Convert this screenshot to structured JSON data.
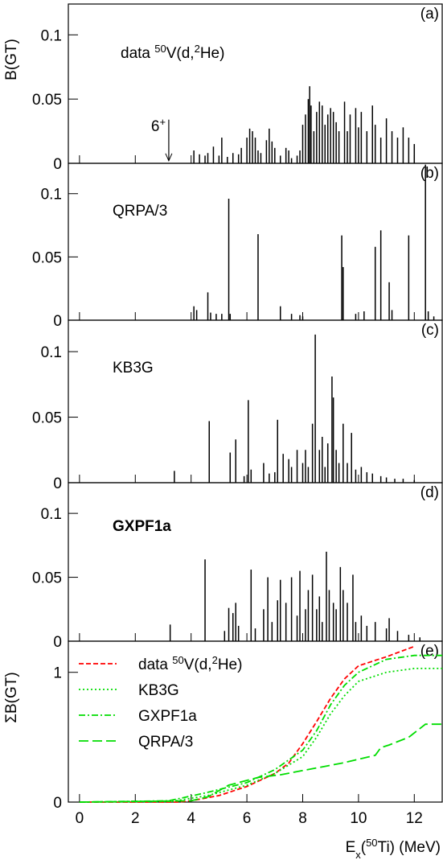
{
  "chart_data": [
    {
      "type": "bar",
      "panel": "(a)",
      "ylabel": "B(GT)",
      "label": [
        {
          "text": "data "
        },
        {
          "text": "50",
          "shift": "sup"
        },
        {
          "text": "V(d,"
        },
        {
          "text": "2",
          "shift": "sup"
        },
        {
          "text": "He)"
        }
      ],
      "annotation": {
        "parts": [
          {
            "text": "6"
          },
          {
            "text": "+",
            "shift": "sup"
          }
        ],
        "x": 3.2
      },
      "xlim": [
        -0.4,
        13
      ],
      "xticks": [
        0,
        2,
        4,
        6,
        8,
        10,
        12
      ],
      "ylim": [
        0,
        0.124
      ],
      "yticks": [
        0,
        0.05,
        0.1
      ],
      "color": "#000000",
      "x": [
        4.1,
        4.3,
        4.5,
        4.6,
        4.8,
        5.0,
        5.1,
        5.3,
        5.5,
        5.7,
        5.8,
        6.0,
        6.1,
        6.2,
        6.3,
        6.4,
        6.5,
        6.7,
        6.8,
        6.9,
        7.0,
        7.2,
        7.4,
        7.5,
        7.6,
        7.8,
        7.9,
        8.0,
        8.1,
        8.2,
        8.25,
        8.3,
        8.4,
        8.5,
        8.6,
        8.7,
        8.8,
        8.9,
        9.0,
        9.1,
        9.2,
        9.3,
        9.5,
        9.6,
        9.7,
        9.9,
        10.0,
        10.1,
        10.3,
        10.5,
        10.6,
        10.8,
        11.0,
        11.2,
        11.4,
        11.6,
        11.8,
        12.0
      ],
      "values": [
        0.01,
        0.007,
        0.006,
        0.008,
        0.013,
        0.006,
        0.02,
        0.005,
        0.008,
        0.007,
        0.012,
        0.02,
        0.027,
        0.025,
        0.02,
        0.01,
        0.008,
        0.018,
        0.027,
        0.017,
        0.012,
        0.006,
        0.012,
        0.01,
        0.004,
        0.006,
        0.01,
        0.03,
        0.038,
        0.05,
        0.06,
        0.045,
        0.025,
        0.04,
        0.048,
        0.045,
        0.03,
        0.038,
        0.043,
        0.04,
        0.032,
        0.025,
        0.048,
        0.025,
        0.038,
        0.043,
        0.028,
        0.04,
        0.025,
        0.045,
        0.03,
        0.02,
        0.035,
        0.025,
        0.02,
        0.028,
        0.02,
        0.015
      ]
    },
    {
      "type": "bar",
      "panel": "(b)",
      "label": [
        {
          "text": "QRPA/3"
        }
      ],
      "xlim": [
        -0.4,
        13
      ],
      "xticks": [
        0,
        2,
        4,
        6,
        8,
        10,
        12
      ],
      "ylim": [
        0,
        0.124
      ],
      "yticks": [
        0,
        0.05,
        0.1
      ],
      "color": "#000000",
      "x": [
        4.1,
        4.2,
        4.6,
        4.7,
        4.9,
        5.1,
        5.35,
        5.4,
        6.4,
        7.2,
        7.6,
        7.9,
        8.0,
        9.4,
        9.45,
        9.9,
        10.2,
        10.6,
        10.8,
        11.1,
        11.2,
        11.8,
        12.4,
        12.5,
        12.7
      ],
      "values": [
        0.011,
        0.008,
        0.022,
        0.006,
        0.005,
        0.005,
        0.096,
        0.005,
        0.068,
        0.011,
        0.005,
        0.004,
        0.003,
        0.067,
        0.042,
        0.005,
        0.007,
        0.058,
        0.071,
        0.03,
        0.008,
        0.067,
        0.123,
        0.007,
        0.003
      ]
    },
    {
      "type": "bar",
      "panel": "(c)",
      "label": [
        {
          "text": "KB3G"
        }
      ],
      "xlim": [
        -0.4,
        13
      ],
      "xticks": [
        0,
        2,
        4,
        6,
        8,
        10,
        12
      ],
      "ylim": [
        0,
        0.124
      ],
      "yticks": [
        0,
        0.05,
        0.1
      ],
      "color": "#000000",
      "x": [
        3.4,
        4.65,
        5.4,
        5.6,
        5.9,
        6.05,
        6.15,
        6.6,
        6.8,
        7.0,
        7.1,
        7.3,
        7.5,
        7.6,
        7.8,
        8.0,
        8.1,
        8.2,
        8.35,
        8.45,
        8.6,
        8.7,
        8.8,
        8.9,
        9.05,
        9.1,
        9.2,
        9.3,
        9.45,
        9.6,
        9.75,
        9.9,
        10.1,
        10.3,
        10.5,
        10.8,
        11.0,
        11.3,
        11.6,
        12.0
      ],
      "values": [
        0.009,
        0.047,
        0.023,
        0.033,
        0.005,
        0.063,
        0.01,
        0.015,
        0.007,
        0.008,
        0.048,
        0.022,
        0.018,
        0.012,
        0.025,
        0.015,
        0.025,
        0.012,
        0.045,
        0.113,
        0.025,
        0.035,
        0.012,
        0.03,
        0.081,
        0.065,
        0.025,
        0.015,
        0.045,
        0.015,
        0.038,
        0.01,
        0.012,
        0.008,
        0.007,
        0.005,
        0.004,
        0.003,
        0.003,
        0.002
      ]
    },
    {
      "type": "bar",
      "panel": "(d)",
      "label": [
        {
          "text": "GXPF1a"
        }
      ],
      "xlim": [
        -0.4,
        13
      ],
      "xticks": [
        0,
        2,
        4,
        6,
        8,
        10,
        12
      ],
      "ylim": [
        0,
        0.124
      ],
      "yticks": [
        0,
        0.05,
        0.1
      ],
      "color": "#000000",
      "x": [
        3.25,
        4.5,
        5.2,
        5.35,
        5.5,
        5.6,
        5.7,
        6.15,
        6.3,
        6.6,
        6.75,
        6.9,
        7.1,
        7.2,
        7.4,
        7.6,
        7.8,
        7.9,
        8.1,
        8.2,
        8.35,
        8.5,
        8.6,
        8.7,
        8.85,
        8.95,
        9.1,
        9.2,
        9.35,
        9.45,
        9.6,
        9.8,
        9.9,
        10.1,
        10.3,
        10.6,
        11.0,
        11.1,
        11.4,
        11.8,
        12.2
      ],
      "values": [
        0.013,
        0.064,
        0.008,
        0.026,
        0.022,
        0.03,
        0.012,
        0.056,
        0.01,
        0.025,
        0.05,
        0.015,
        0.032,
        0.048,
        0.03,
        0.05,
        0.02,
        0.055,
        0.025,
        0.04,
        0.052,
        0.025,
        0.035,
        0.015,
        0.07,
        0.04,
        0.03,
        0.025,
        0.058,
        0.04,
        0.03,
        0.052,
        0.015,
        0.02,
        0.012,
        0.015,
        0.01,
        0.018,
        0.008,
        0.005,
        0.003
      ]
    },
    {
      "type": "line",
      "panel": "(e)",
      "ylabel": "ΣB(GT)",
      "xlabel": [
        {
          "text": "E"
        },
        {
          "text": "x",
          "shift": "sub"
        },
        {
          "text": "("
        },
        {
          "text": "50",
          "shift": "sup"
        },
        {
          "text": "Ti) (MeV)"
        }
      ],
      "xlim": [
        -0.4,
        13
      ],
      "xticks": [
        0,
        2,
        4,
        6,
        8,
        10,
        12
      ],
      "ylim": [
        0,
        1.24
      ],
      "yticks": [
        0,
        1
      ],
      "series": [
        {
          "name": [
            {
              "text": "data "
            },
            {
              "text": "50",
              "shift": "sup"
            },
            {
              "text": "V(d,"
            },
            {
              "text": "2",
              "shift": "sup"
            },
            {
              "text": "He)"
            }
          ],
          "color": "#ff0000",
          "dash": "6,3",
          "x": [
            0,
            3.5,
            4,
            5,
            6,
            7,
            7.5,
            8,
            8.5,
            9,
            9.5,
            10,
            11,
            12
          ],
          "values": [
            0,
            0,
            0.01,
            0.05,
            0.12,
            0.22,
            0.3,
            0.45,
            0.62,
            0.8,
            0.95,
            1.05,
            1.12,
            1.2
          ]
        },
        {
          "name": [
            {
              "text": "KB3G"
            }
          ],
          "color": "#00dd00",
          "dash": "2,3",
          "x": [
            0,
            3.3,
            4.6,
            6,
            7,
            8,
            8.5,
            9,
            9.5,
            10,
            11,
            12,
            13
          ],
          "values": [
            0,
            0.005,
            0.05,
            0.13,
            0.22,
            0.35,
            0.5,
            0.68,
            0.82,
            0.93,
            1.0,
            1.03,
            1.03
          ]
        },
        {
          "name": [
            {
              "text": "GXPF1a"
            }
          ],
          "color": "#00dd00",
          "dash": "8,3,2,3",
          "x": [
            0,
            3.2,
            4.5,
            6,
            7,
            8,
            8.5,
            9,
            9.5,
            10,
            11,
            12,
            13
          ],
          "values": [
            0,
            0.01,
            0.07,
            0.15,
            0.25,
            0.4,
            0.55,
            0.75,
            0.9,
            1.0,
            1.1,
            1.13,
            1.13
          ]
        },
        {
          "name": [
            {
              "text": "QRPA/3"
            }
          ],
          "color": "#00dd00",
          "dash": "12,5",
          "x": [
            0,
            4,
            4.6,
            5.35,
            6.4,
            7.2,
            9.4,
            10.6,
            10.8,
            11.1,
            11.8,
            12.4,
            13
          ],
          "values": [
            0,
            0.01,
            0.04,
            0.13,
            0.19,
            0.21,
            0.3,
            0.36,
            0.42,
            0.44,
            0.5,
            0.6,
            0.6
          ]
        }
      ]
    }
  ]
}
